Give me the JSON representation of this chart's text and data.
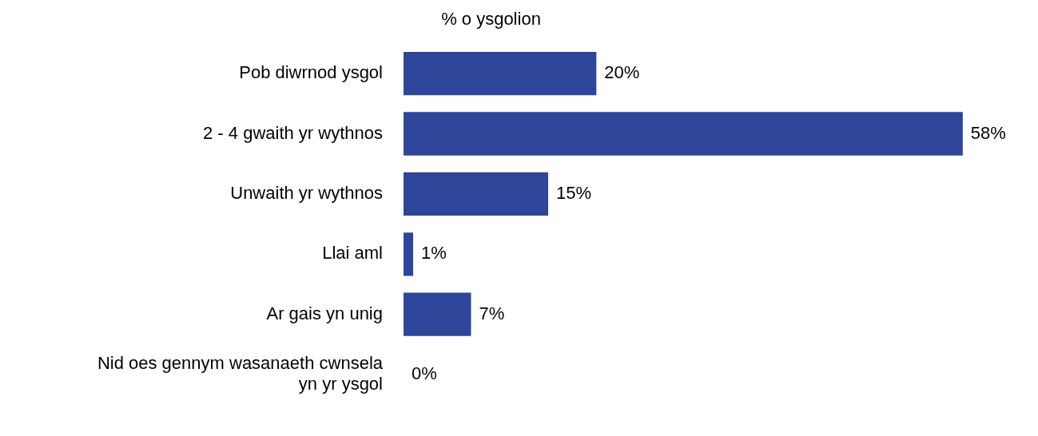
{
  "chart_data": {
    "type": "bar",
    "orientation": "horizontal",
    "title": "% o ysgolion",
    "categories": [
      "Pob diwrnod ysgol",
      "2 - 4 gwaith yr wythnos",
      "Unwaith yr wythnos",
      "Llai aml",
      "Ar gais yn unig",
      "Nid oes gennym wasanaeth cwnsela yn yr ysgol"
    ],
    "values": [
      20,
      58,
      15,
      1,
      7,
      0
    ],
    "value_labels": [
      "20%",
      "58%",
      "15%",
      "1%",
      "7%",
      "0%"
    ],
    "color": "#2e4699",
    "grid": false,
    "legend": false
  }
}
